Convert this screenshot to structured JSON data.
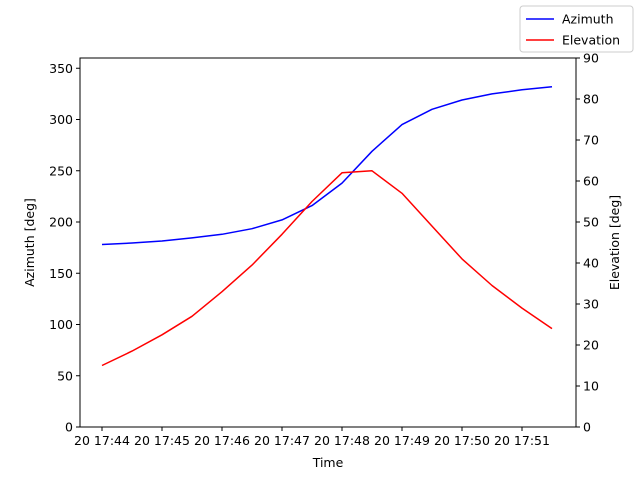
{
  "chart_data": {
    "type": "line",
    "xlabel": "Time",
    "ylabel_left": "Azimuth [deg]",
    "ylabel_right": "Elevation [deg]",
    "x_tick_labels": [
      "20 17:44",
      "20 17:45",
      "20 17:46",
      "20 17:47",
      "20 17:48",
      "20 17:49",
      "20 17:50",
      "20 17:51"
    ],
    "x_minutes": [
      0,
      0.5,
      1,
      1.5,
      2,
      2.5,
      3,
      3.5,
      4,
      4.5,
      5,
      5.5,
      6,
      6.5,
      7,
      7.5
    ],
    "ylim_left": [
      0,
      360
    ],
    "ylim_right": [
      0,
      90
    ],
    "yticks_left": [
      0,
      50,
      100,
      150,
      200,
      250,
      300,
      350
    ],
    "yticks_right": [
      0,
      10,
      20,
      30,
      40,
      50,
      60,
      70,
      80,
      90
    ],
    "grid": false,
    "legend_position": "top-right",
    "series": [
      {
        "name": "Azimuth",
        "axis": "left",
        "color": "#0000ff",
        "values": [
          178,
          179.5,
          181.5,
          184.5,
          188,
          193.5,
          202,
          216,
          238,
          269,
          295,
          310,
          319,
          325,
          329,
          332
        ]
      },
      {
        "name": "Elevation",
        "axis": "right",
        "color": "#ff0000",
        "values": [
          15,
          18.5,
          22.5,
          27,
          33,
          39.5,
          47,
          55,
          62,
          62.5,
          57,
          49,
          41,
          34.5,
          29,
          24
        ]
      }
    ]
  }
}
